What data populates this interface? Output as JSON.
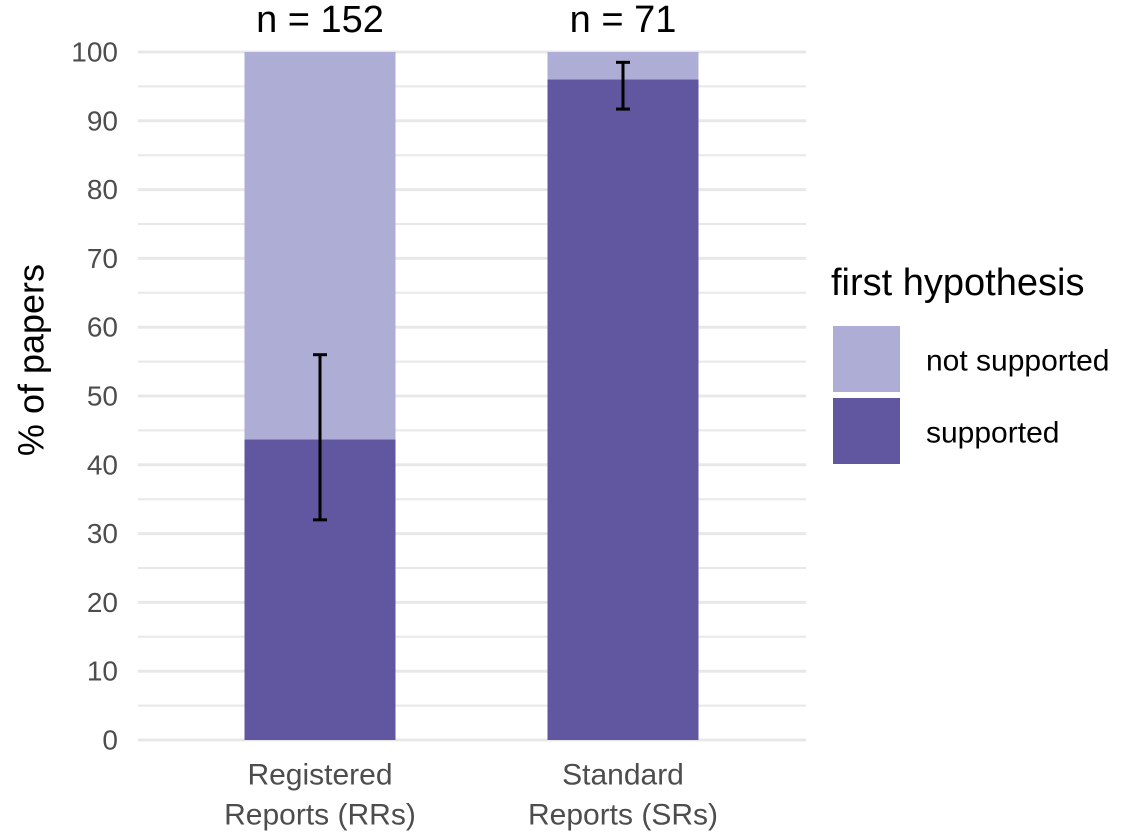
{
  "chart_data": {
    "type": "bar",
    "stacked": true,
    "categories": [
      "Registered\nReports (RRs)",
      "Standard\nReports (SRs)"
    ],
    "category_lines": [
      [
        "Registered",
        "Reports (RRs)"
      ],
      [
        "Standard",
        "Reports (SRs)"
      ]
    ],
    "series": [
      {
        "name": "supported",
        "values": [
          43.7,
          96.0
        ],
        "color": "#6157a1"
      },
      {
        "name": "not supported",
        "values": [
          56.3,
          4.0
        ],
        "color": "#adadd5"
      }
    ],
    "error_bars": [
      {
        "category": "Registered\nReports (RRs)",
        "low": 32.0,
        "high": 56.0
      },
      {
        "category": "Standard\nReports (SRs)",
        "low": 91.7,
        "high": 98.5
      }
    ],
    "annotations": [
      "n = 152",
      "n = 71"
    ],
    "ylabel": "% of papers",
    "xlabel": "",
    "ylim": [
      0,
      100
    ],
    "yticks": [
      0,
      10,
      20,
      30,
      40,
      50,
      60,
      70,
      80,
      90,
      100
    ],
    "grid": true,
    "legend": {
      "title": "first hypothesis",
      "position": "right",
      "entries": [
        "not supported",
        "supported"
      ]
    }
  },
  "colors": {
    "grid": "#e8e8e8",
    "error_bar": "#000000"
  }
}
